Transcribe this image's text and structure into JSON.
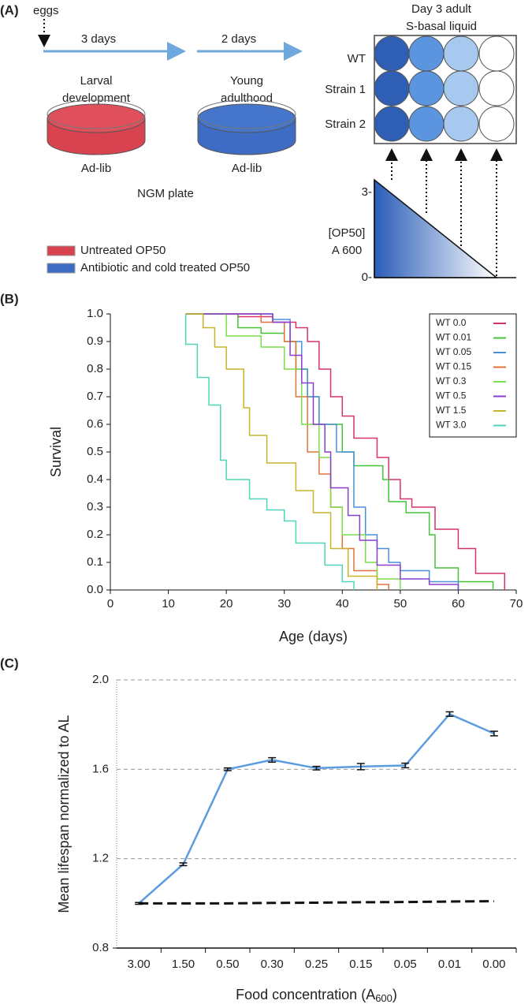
{
  "panel_labels": [
    "(A)",
    "(B)",
    "(C)"
  ],
  "diagram": {
    "eggs": "eggs",
    "arrow1": "3 days",
    "arrow2": "2 days",
    "plate1": [
      "Larval",
      "development"
    ],
    "plate2": [
      "Young",
      "adulthood"
    ],
    "plate1_feed": "Ad-lib",
    "plate2_feed": "Ad-lib",
    "plate_type": "NGM plate",
    "wells_title": [
      "Day 3 adult",
      "S-basal liquid"
    ],
    "rows": [
      "WT",
      "Strain 1",
      "Strain 2"
    ],
    "gradient_axis": {
      "top": "3-",
      "bottom": "0-",
      "label": [
        "[OP50]",
        "A 600"
      ]
    },
    "legend": [
      {
        "name": "Untreated OP50",
        "color": "#d9434f"
      },
      {
        "name": "Antibiotic and cold treated OP50",
        "color": "#3e6cc4"
      }
    ]
  },
  "chart_data": [
    {
      "type": "step",
      "x_label": "Age (days)",
      "y_label": "Survival",
      "xlim": [
        0,
        70
      ],
      "xticks": [
        0,
        10,
        20,
        30,
        40,
        50,
        60,
        70
      ],
      "ylim": [
        0,
        1
      ],
      "yticks": [
        {
          "value": 0,
          "label": "0.0"
        },
        0.1,
        0.2,
        0.3,
        0.4,
        0.5,
        0.6,
        0.7,
        0.8,
        0.9,
        {
          "value": 1,
          "label": "1.0"
        }
      ],
      "series": [
        {
          "name": "WT 0.0",
          "color": "#d6336b",
          "x": [
            13,
            22,
            28,
            32,
            34,
            36,
            38,
            40,
            42,
            46,
            48,
            50,
            52,
            56,
            60,
            63,
            68
          ],
          "values": [
            1,
            0.99,
            0.97,
            0.95,
            0.9,
            0.8,
            0.7,
            0.63,
            0.55,
            0.48,
            0.4,
            0.33,
            0.3,
            0.22,
            0.15,
            0.06,
            0
          ]
        },
        {
          "name": "WT 0.01",
          "color": "#45c43a",
          "x": [
            13,
            18,
            22,
            26,
            30,
            32,
            34,
            36,
            40,
            42,
            47,
            48,
            51,
            55,
            56,
            60,
            66
          ],
          "values": [
            1,
            1,
            0.95,
            0.93,
            0.9,
            0.8,
            0.7,
            0.6,
            0.5,
            0.45,
            0.4,
            0.32,
            0.28,
            0.2,
            0.08,
            0.03,
            0
          ]
        },
        {
          "name": "WT 0.05",
          "color": "#4a90d9",
          "x": [
            13,
            25,
            28,
            31,
            33,
            34,
            36,
            39,
            42,
            44,
            46,
            48,
            50,
            55,
            60
          ],
          "values": [
            1,
            1,
            0.98,
            0.9,
            0.8,
            0.7,
            0.6,
            0.5,
            0.3,
            0.2,
            0.15,
            0.1,
            0.07,
            0.03,
            0
          ]
        },
        {
          "name": "WT 0.15",
          "color": "#e0733a",
          "x": [
            13,
            22,
            26,
            30,
            32,
            34,
            36,
            38,
            40,
            42,
            46,
            48
          ],
          "values": [
            1,
            1,
            0.97,
            0.9,
            0.7,
            0.5,
            0.42,
            0.3,
            0.15,
            0.07,
            0.02,
            0
          ]
        },
        {
          "name": "WT 0.3",
          "color": "#7ddc4a",
          "x": [
            13,
            16,
            20,
            26,
            30,
            33,
            36,
            38,
            40,
            44,
            46,
            50
          ],
          "values": [
            1,
            1,
            0.92,
            0.88,
            0.8,
            0.6,
            0.48,
            0.3,
            0.2,
            0.1,
            0.04,
            0
          ]
        },
        {
          "name": "WT 0.5",
          "color": "#8a3fd1",
          "x": [
            13,
            24,
            28,
            31,
            33,
            35,
            37,
            38,
            41,
            43,
            46,
            50,
            55,
            60
          ],
          "values": [
            1,
            1,
            0.97,
            0.85,
            0.75,
            0.6,
            0.5,
            0.37,
            0.27,
            0.18,
            0.09,
            0.04,
            0.02,
            0
          ]
        },
        {
          "name": "WT 1.5",
          "color": "#c8b42a",
          "x": [
            13,
            14,
            16,
            18,
            20,
            23,
            24,
            27,
            32,
            35,
            38,
            41,
            46
          ],
          "values": [
            1,
            1,
            0.95,
            0.88,
            0.8,
            0.66,
            0.56,
            0.46,
            0.36,
            0.28,
            0.15,
            0.05,
            0
          ]
        },
        {
          "name": "WT 3.0",
          "color": "#4dd6b8",
          "x": [
            13,
            15,
            17,
            19,
            20,
            24,
            27,
            30,
            32,
            37,
            40,
            42
          ],
          "values": [
            0.89,
            0.77,
            0.67,
            0.47,
            0.4,
            0.33,
            0.29,
            0.25,
            0.17,
            0.09,
            0.03,
            0
          ]
        }
      ]
    },
    {
      "type": "line",
      "x_label_parts": [
        "Food concentration (A",
        "600",
        ")"
      ],
      "y_label": "Mean lifespan normalized to AL",
      "categories": [
        "3.00",
        "1.50",
        "0.50",
        "0.30",
        "0.25",
        "0.15",
        "0.05",
        "0.01",
        "0.00"
      ],
      "ylim": [
        0.8,
        2
      ],
      "yticks": [
        0.8,
        1.2,
        1.6,
        {
          "value": 2,
          "label": "2.0"
        }
      ],
      "grid": true,
      "series": [
        {
          "color": "#5b9be0",
          "values": [
            1,
            1.175,
            1.6,
            1.642,
            1.605,
            1.612,
            1.617,
            1.847,
            1.76
          ],
          "errors": [
            0.004,
            0.006,
            0.006,
            0.01,
            0.008,
            0.014,
            0.01,
            0.01,
            0.01
          ]
        },
        {
          "color": "#111111",
          "dashed": true,
          "values": [
            1,
            1,
            1,
            1.002,
            1.003,
            1.005,
            1.006,
            1.008,
            1.01
          ]
        }
      ]
    }
  ]
}
